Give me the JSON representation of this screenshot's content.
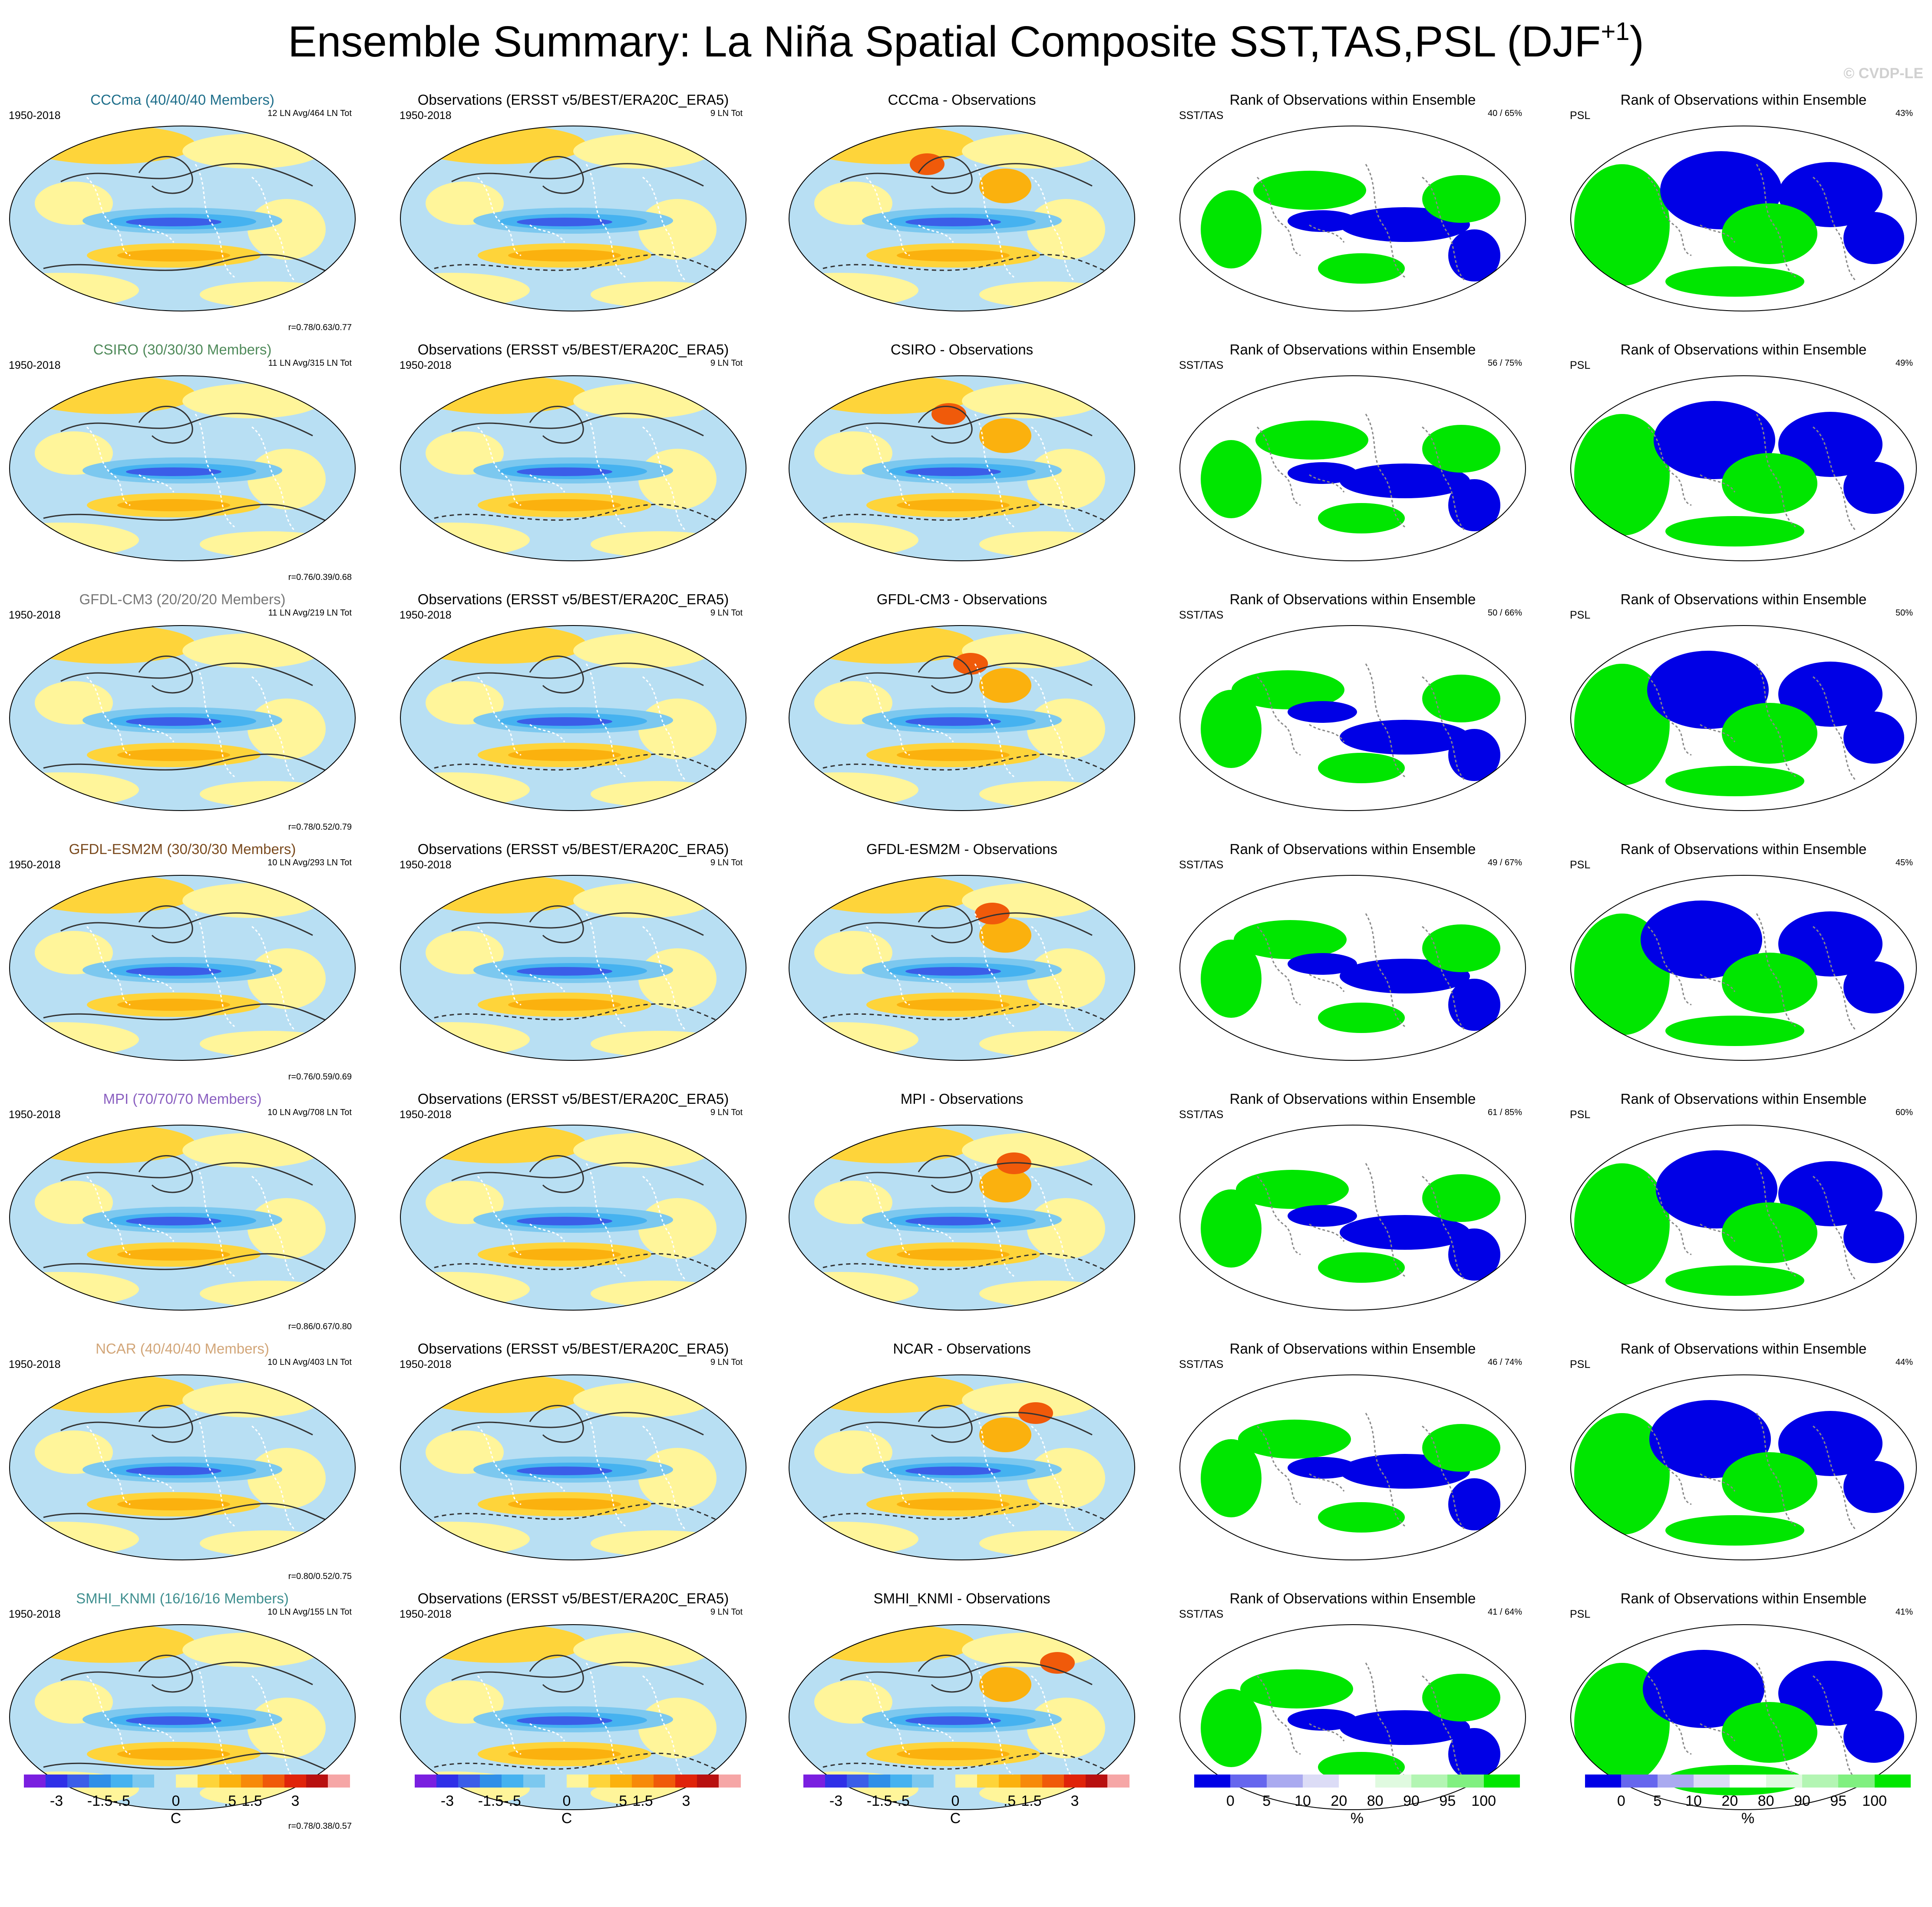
{
  "title": "Ensemble Summary: La Niña Spatial Composite SST,TAS,PSL (DJF",
  "title_sup": "+1",
  "watermark": "© CVDP-LE",
  "rows": [
    {
      "model": {
        "title": "CCCma (40/40/40 Members)",
        "color": "#1f6f8b",
        "years": "1950-2018",
        "note": "12 LN Avg/464 LN Tot",
        "corr": "r=0.78/0.63/0.77"
      },
      "obs": {
        "title": "Observations (ERSST v5/BEST/ERA20C_ERA5)",
        "years": "1950-2018",
        "note": "9 LN Tot"
      },
      "diff": {
        "title": "CCCma - Observations"
      },
      "rank_sst": {
        "title": "Rank of Observations within Ensemble",
        "label": "SST/TAS",
        "pct": "40 /  65%"
      },
      "rank_psl": {
        "title": "Rank of Observations within Ensemble",
        "label": "PSL",
        "pct": "43%"
      }
    },
    {
      "model": {
        "title": "CSIRO (30/30/30 Members)",
        "color": "#4f8a5a",
        "years": "1950-2018",
        "note": "11 LN Avg/315 LN Tot",
        "corr": "r=0.76/0.39/0.68"
      },
      "obs": {
        "title": "Observations (ERSST v5/BEST/ERA20C_ERA5)",
        "years": "1950-2018",
        "note": "9 LN Tot"
      },
      "diff": {
        "title": "CSIRO - Observations"
      },
      "rank_sst": {
        "title": "Rank of Observations within Ensemble",
        "label": "SST/TAS",
        "pct": "56 /  75%"
      },
      "rank_psl": {
        "title": "Rank of Observations within Ensemble",
        "label": "PSL",
        "pct": "49%"
      }
    },
    {
      "model": {
        "title": "GFDL-CM3 (20/20/20 Members)",
        "color": "#777777",
        "years": "1950-2018",
        "note": "11 LN Avg/219 LN Tot",
        "corr": "r=0.78/0.52/0.79"
      },
      "obs": {
        "title": "Observations (ERSST v5/BEST/ERA20C_ERA5)",
        "years": "1950-2018",
        "note": "9 LN Tot"
      },
      "diff": {
        "title": "GFDL-CM3 - Observations"
      },
      "rank_sst": {
        "title": "Rank of Observations within Ensemble",
        "label": "SST/TAS",
        "pct": "50 /  66%"
      },
      "rank_psl": {
        "title": "Rank of Observations within Ensemble",
        "label": "PSL",
        "pct": "50%"
      }
    },
    {
      "model": {
        "title": "GFDL-ESM2M (30/30/30 Members)",
        "color": "#7a4a1e",
        "years": "1950-2018",
        "note": "10 LN Avg/293 LN Tot",
        "corr": "r=0.76/0.59/0.69"
      },
      "obs": {
        "title": "Observations (ERSST v5/BEST/ERA20C_ERA5)",
        "years": "1950-2018",
        "note": "9 LN Tot"
      },
      "diff": {
        "title": "GFDL-ESM2M - Observations"
      },
      "rank_sst": {
        "title": "Rank of Observations within Ensemble",
        "label": "SST/TAS",
        "pct": "49 /  67%"
      },
      "rank_psl": {
        "title": "Rank of Observations within Ensemble",
        "label": "PSL",
        "pct": "45%"
      }
    },
    {
      "model": {
        "title": "MPI (70/70/70 Members)",
        "color": "#8a5fc0",
        "years": "1950-2018",
        "note": "10 LN Avg/708 LN Tot",
        "corr": "r=0.86/0.67/0.80"
      },
      "obs": {
        "title": "Observations (ERSST v5/BEST/ERA20C_ERA5)",
        "years": "1950-2018",
        "note": "9 LN Tot"
      },
      "diff": {
        "title": "MPI - Observations"
      },
      "rank_sst": {
        "title": "Rank of Observations within Ensemble",
        "label": "SST/TAS",
        "pct": "61 /  85%"
      },
      "rank_psl": {
        "title": "Rank of Observations within Ensemble",
        "label": "PSL",
        "pct": "60%"
      }
    },
    {
      "model": {
        "title": "NCAR (40/40/40 Members)",
        "color": "#d2a679",
        "years": "1950-2018",
        "note": "10 LN Avg/403 LN Tot",
        "corr": "r=0.80/0.52/0.75"
      },
      "obs": {
        "title": "Observations (ERSST v5/BEST/ERA20C_ERA5)",
        "years": "1950-2018",
        "note": "9 LN Tot"
      },
      "diff": {
        "title": "NCAR - Observations"
      },
      "rank_sst": {
        "title": "Rank of Observations within Ensemble",
        "label": "SST/TAS",
        "pct": "46 /  74%"
      },
      "rank_psl": {
        "title": "Rank of Observations within Ensemble",
        "label": "PSL",
        "pct": "44%"
      }
    },
    {
      "model": {
        "title": "SMHI_KNMI (16/16/16 Members)",
        "color": "#3f8f8f",
        "years": "1950-2018",
        "note": "10 LN Avg/155 LN Tot",
        "corr": "r=0.78/0.38/0.57"
      },
      "obs": {
        "title": "Observations (ERSST v5/BEST/ERA20C_ERA5)",
        "years": "1950-2018",
        "note": "9 LN Tot"
      },
      "diff": {
        "title": "SMHI_KNMI - Observations"
      },
      "rank_sst": {
        "title": "Rank of Observations within Ensemble",
        "label": "SST/TAS",
        "pct": "41 /  64%"
      },
      "rank_psl": {
        "title": "Rank of Observations within Ensemble",
        "label": "PSL",
        "pct": "41%"
      }
    }
  ],
  "colorbars": {
    "temp": {
      "colors": [
        "#7a1fe0",
        "#2f2fe8",
        "#3b5ee8",
        "#2f8fe8",
        "#45b2f0",
        "#7cc8ef",
        "#b8dff3",
        "#fff59a",
        "#fed43a",
        "#fbb10e",
        "#f78a0a",
        "#f05a0a",
        "#e0230a",
        "#b81010",
        "#f6a6a6"
      ],
      "ticks": [
        "-3",
        "-1.5",
        "-.5",
        "0",
        ".5",
        "1.5",
        "3"
      ],
      "unit": "C"
    },
    "rank": {
      "colors": [
        "#0000e6",
        "#6666ee",
        "#aaaaf0",
        "#dcdcf6",
        "#ffffff",
        "#e0fae0",
        "#b3f5b3",
        "#80f080",
        "#00e600"
      ],
      "ticks": [
        "0",
        "5",
        "10",
        "20",
        "80",
        "90",
        "95",
        "100"
      ],
      "unit": "%"
    }
  },
  "palette": {
    "sea_cool": "#b8dff3",
    "sea_cool2": "#7cc8ef",
    "sea_cold": "#45b2f0",
    "sea_deep": "#3b5ee8",
    "warm": "#fff59a",
    "warm2": "#fed43a",
    "warm3": "#fbb10e",
    "hot": "#f05a0a",
    "rank_blue": "#0000e6",
    "rank_green": "#00e600"
  }
}
